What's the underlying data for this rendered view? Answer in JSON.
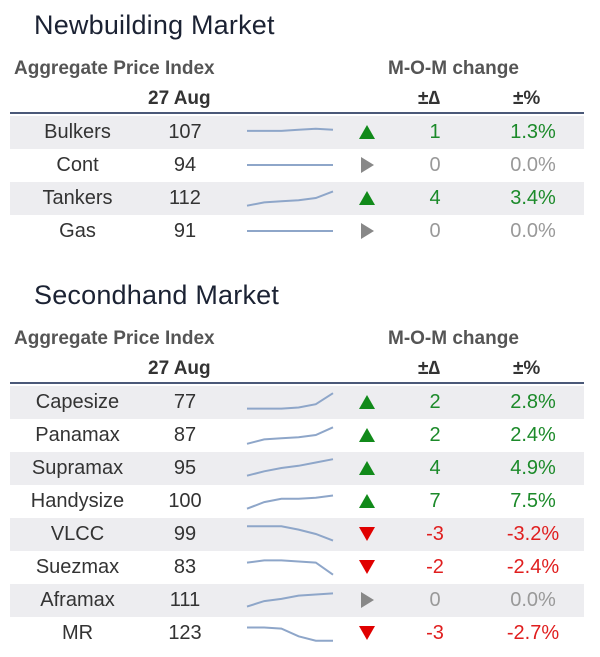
{
  "sections": [
    {
      "title": "Newbuilding Market",
      "index_label": "Aggregate Price Index",
      "date_label": "27 Aug",
      "mom_label": "M-O-M change",
      "delta_label": "±∆",
      "pct_label": "±%",
      "rows": [
        {
          "name": "Bulkers",
          "value": "107",
          "trend": "up",
          "delta": "1",
          "pct": "1.3%",
          "spark": [
            0.55,
            0.55,
            0.55,
            0.6,
            0.65,
            0.6
          ]
        },
        {
          "name": "Cont",
          "value": "94",
          "trend": "flat",
          "delta": "0",
          "pct": "0.0%",
          "spark": [
            0.5,
            0.5,
            0.5,
            0.5,
            0.5,
            0.5
          ]
        },
        {
          "name": "Tankers",
          "value": "112",
          "trend": "up",
          "delta": "4",
          "pct": "3.4%",
          "spark": [
            0.15,
            0.3,
            0.35,
            0.4,
            0.5,
            0.8
          ]
        },
        {
          "name": "Gas",
          "value": "91",
          "trend": "flat",
          "delta": "0",
          "pct": "0.0%",
          "spark": [
            0.5,
            0.5,
            0.5,
            0.5,
            0.5,
            0.5
          ]
        }
      ]
    },
    {
      "title": "Secondhand Market",
      "index_label": "Aggregate Price Index",
      "date_label": "27 Aug",
      "mom_label": "M-O-M change",
      "delta_label": "±∆",
      "pct_label": "±%",
      "rows": [
        {
          "name": "Capesize",
          "value": "77",
          "trend": "up",
          "delta": "2",
          "pct": "2.8%",
          "spark": [
            0.2,
            0.2,
            0.2,
            0.25,
            0.4,
            0.9
          ]
        },
        {
          "name": "Panamax",
          "value": "87",
          "trend": "up",
          "delta": "2",
          "pct": "2.4%",
          "spark": [
            0.1,
            0.3,
            0.35,
            0.4,
            0.5,
            0.85
          ]
        },
        {
          "name": "Supramax",
          "value": "95",
          "trend": "up",
          "delta": "4",
          "pct": "4.9%",
          "spark": [
            0.15,
            0.35,
            0.5,
            0.6,
            0.75,
            0.9
          ]
        },
        {
          "name": "Handysize",
          "value": "100",
          "trend": "up",
          "delta": "7",
          "pct": "7.5%",
          "spark": [
            0.15,
            0.45,
            0.6,
            0.6,
            0.65,
            0.75
          ]
        },
        {
          "name": "VLCC",
          "value": "99",
          "trend": "down",
          "delta": "-3",
          "pct": "-3.2%",
          "spark": [
            0.85,
            0.85,
            0.85,
            0.7,
            0.5,
            0.2
          ]
        },
        {
          "name": "Suezmax",
          "value": "83",
          "trend": "down",
          "delta": "-2",
          "pct": "-2.4%",
          "spark": [
            0.7,
            0.8,
            0.8,
            0.75,
            0.7,
            0.15
          ]
        },
        {
          "name": "Aframax",
          "value": "111",
          "trend": "flat",
          "delta": "0",
          "pct": "0.0%",
          "spark": [
            0.2,
            0.45,
            0.55,
            0.7,
            0.75,
            0.8
          ]
        },
        {
          "name": "MR",
          "value": "123",
          "trend": "down",
          "delta": "-3",
          "pct": "-2.7%",
          "spark": [
            0.75,
            0.75,
            0.7,
            0.35,
            0.15,
            0.15
          ]
        }
      ]
    }
  ],
  "colors": {
    "up": "#1c8a2a",
    "down": "#e01e1e",
    "flat": "#999999",
    "spark": "#8ea6c9",
    "rule": "#4a5878",
    "shade": "#ededf0"
  }
}
